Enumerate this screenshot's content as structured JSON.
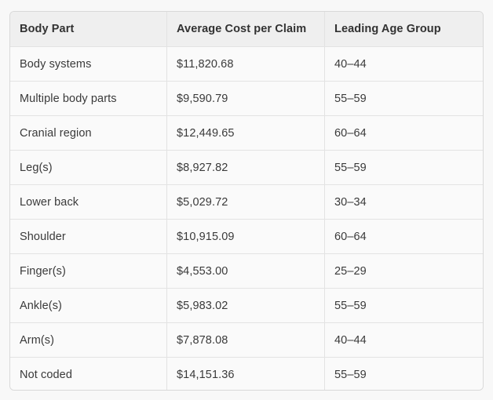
{
  "table": {
    "columns": [
      "Body Part",
      "Average Cost per Claim",
      "Leading Age Group"
    ],
    "rows": [
      {
        "body_part": "Body systems",
        "avg_cost": "$11,820.68",
        "age_group": "40–44"
      },
      {
        "body_part": "Multiple body parts",
        "avg_cost": "$9,590.79",
        "age_group": "55–59"
      },
      {
        "body_part": "Cranial region",
        "avg_cost": "$12,449.65",
        "age_group": "60–64"
      },
      {
        "body_part": "Leg(s)",
        "avg_cost": "$8,927.82",
        "age_group": "55–59"
      },
      {
        "body_part": "Lower back",
        "avg_cost": "$5,029.72",
        "age_group": "30–34"
      },
      {
        "body_part": "Shoulder",
        "avg_cost": "$10,915.09",
        "age_group": "60–64"
      },
      {
        "body_part": "Finger(s)",
        "avg_cost": "$4,553.00",
        "age_group": "25–29"
      },
      {
        "body_part": "Ankle(s)",
        "avg_cost": "$5,983.02",
        "age_group": "55–59"
      },
      {
        "body_part": "Arm(s)",
        "avg_cost": "$7,878.08",
        "age_group": "40–44"
      },
      {
        "body_part": "Not coded",
        "avg_cost": "$14,151.36",
        "age_group": "55–59"
      }
    ]
  },
  "chart_data": {
    "type": "table",
    "columns": [
      "Body Part",
      "Average Cost per Claim",
      "Leading Age Group"
    ],
    "body_parts": [
      "Body systems",
      "Multiple body parts",
      "Cranial region",
      "Leg(s)",
      "Lower back",
      "Shoulder",
      "Finger(s)",
      "Ankle(s)",
      "Arm(s)",
      "Not coded"
    ],
    "average_cost_per_claim": [
      11820.68,
      9590.79,
      12449.65,
      8927.82,
      5029.72,
      10915.09,
      4553.0,
      5983.02,
      7878.08,
      14151.36
    ],
    "leading_age_group": [
      "40–44",
      "55–59",
      "60–64",
      "55–59",
      "30–34",
      "60–64",
      "25–29",
      "55–59",
      "40–44",
      "55–59"
    ]
  },
  "colors": {
    "page_background": "#f8f8f8",
    "header_background": "#efefef",
    "row_background": "#fafafa",
    "outer_border": "#d9d9d9",
    "divider": "#e2e2e2",
    "text": "#3a3a3a"
  }
}
